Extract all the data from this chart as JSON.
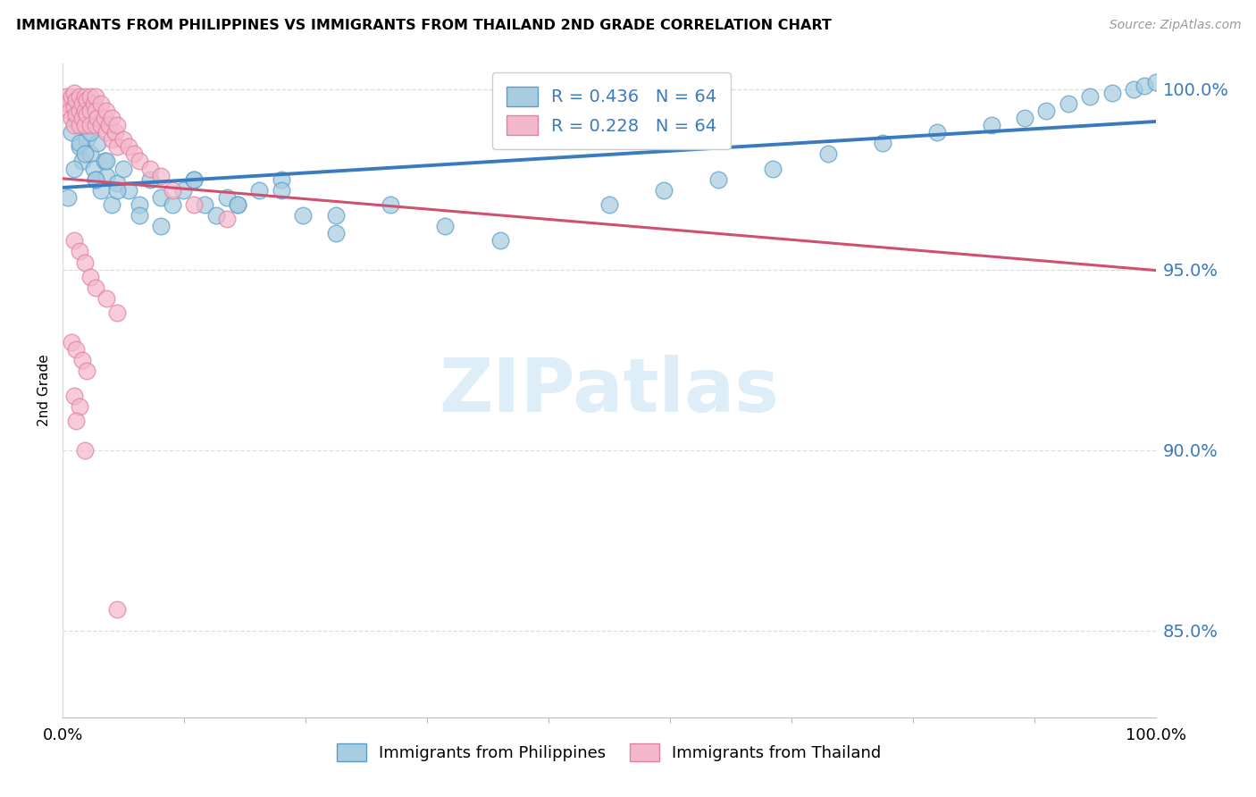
{
  "title": "IMMIGRANTS FROM PHILIPPINES VS IMMIGRANTS FROM THAILAND 2ND GRADE CORRELATION CHART",
  "source": "Source: ZipAtlas.com",
  "legend_label1": "Immigrants from Philippines",
  "legend_label2": "Immigrants from Thailand",
  "ylabel": "2nd Grade",
  "r_blue": 0.436,
  "n_blue": 64,
  "r_pink": 0.228,
  "n_pink": 64,
  "xlim": [
    0.0,
    1.0
  ],
  "ylim": [
    0.826,
    1.007
  ],
  "yticks": [
    0.85,
    0.9,
    0.95,
    1.0
  ],
  "ytick_labels": [
    "85.0%",
    "90.0%",
    "95.0%",
    "100.0%"
  ],
  "xtick_labels": [
    "0.0%",
    "100.0%"
  ],
  "color_blue": "#a8cce0",
  "color_pink": "#f4b8cc",
  "color_blue_edge": "#5b9ec9",
  "color_pink_edge": "#e080a0",
  "color_blue_line": "#3a7abf",
  "color_pink_line": "#d05070",
  "color_axis_text": "#3a7abf",
  "grid_color": "#dddddd",
  "watermark_color": "#ddeef8",
  "blue_x": [
    0.008,
    0.012,
    0.015,
    0.018,
    0.02,
    0.022,
    0.025,
    0.028,
    0.03,
    0.032,
    0.035,
    0.038,
    0.04,
    0.045,
    0.05,
    0.055,
    0.06,
    0.07,
    0.08,
    0.09,
    0.1,
    0.11,
    0.12,
    0.13,
    0.14,
    0.15,
    0.16,
    0.18,
    0.2,
    0.22,
    0.01,
    0.015,
    0.02,
    0.025,
    0.03,
    0.04,
    0.05,
    0.07,
    0.09,
    0.12,
    0.16,
    0.2,
    0.25,
    0.3,
    0.35,
    0.4,
    0.5,
    0.55,
    0.6,
    0.65,
    0.7,
    0.75,
    0.8,
    0.85,
    0.88,
    0.9,
    0.92,
    0.94,
    0.96,
    0.98,
    0.99,
    1.0,
    0.005,
    0.25
  ],
  "blue_y": [
    0.988,
    0.992,
    0.984,
    0.98,
    0.99,
    0.986,
    0.982,
    0.978,
    0.975,
    0.985,
    0.972,
    0.98,
    0.976,
    0.968,
    0.974,
    0.978,
    0.972,
    0.968,
    0.975,
    0.97,
    0.968,
    0.972,
    0.975,
    0.968,
    0.965,
    0.97,
    0.968,
    0.972,
    0.975,
    0.965,
    0.978,
    0.985,
    0.982,
    0.988,
    0.975,
    0.98,
    0.972,
    0.965,
    0.962,
    0.975,
    0.968,
    0.972,
    0.965,
    0.968,
    0.962,
    0.958,
    0.968,
    0.972,
    0.975,
    0.978,
    0.982,
    0.985,
    0.988,
    0.99,
    0.992,
    0.994,
    0.996,
    0.998,
    0.999,
    1.0,
    1.001,
    1.002,
    0.97,
    0.96
  ],
  "pink_x": [
    0.003,
    0.005,
    0.006,
    0.008,
    0.008,
    0.01,
    0.01,
    0.01,
    0.012,
    0.012,
    0.015,
    0.015,
    0.015,
    0.018,
    0.018,
    0.02,
    0.02,
    0.02,
    0.022,
    0.022,
    0.025,
    0.025,
    0.025,
    0.028,
    0.03,
    0.03,
    0.03,
    0.032,
    0.035,
    0.035,
    0.038,
    0.04,
    0.04,
    0.042,
    0.045,
    0.045,
    0.048,
    0.05,
    0.05,
    0.055,
    0.06,
    0.065,
    0.07,
    0.08,
    0.09,
    0.1,
    0.12,
    0.15,
    0.01,
    0.015,
    0.02,
    0.025,
    0.03,
    0.04,
    0.05,
    0.008,
    0.012,
    0.018,
    0.022,
    0.01,
    0.015,
    0.012,
    0.02,
    0.05
  ],
  "pink_y": [
    0.998,
    0.996,
    0.994,
    0.998,
    0.992,
    0.999,
    0.995,
    0.99,
    0.997,
    0.993,
    0.998,
    0.994,
    0.99,
    0.996,
    0.992,
    0.998,
    0.994,
    0.99,
    0.997,
    0.993,
    0.998,
    0.994,
    0.99,
    0.996,
    0.998,
    0.994,
    0.99,
    0.992,
    0.996,
    0.99,
    0.992,
    0.994,
    0.988,
    0.99,
    0.992,
    0.986,
    0.988,
    0.99,
    0.984,
    0.986,
    0.984,
    0.982,
    0.98,
    0.978,
    0.976,
    0.972,
    0.968,
    0.964,
    0.958,
    0.955,
    0.952,
    0.948,
    0.945,
    0.942,
    0.938,
    0.93,
    0.928,
    0.925,
    0.922,
    0.915,
    0.912,
    0.908,
    0.9,
    0.856
  ]
}
